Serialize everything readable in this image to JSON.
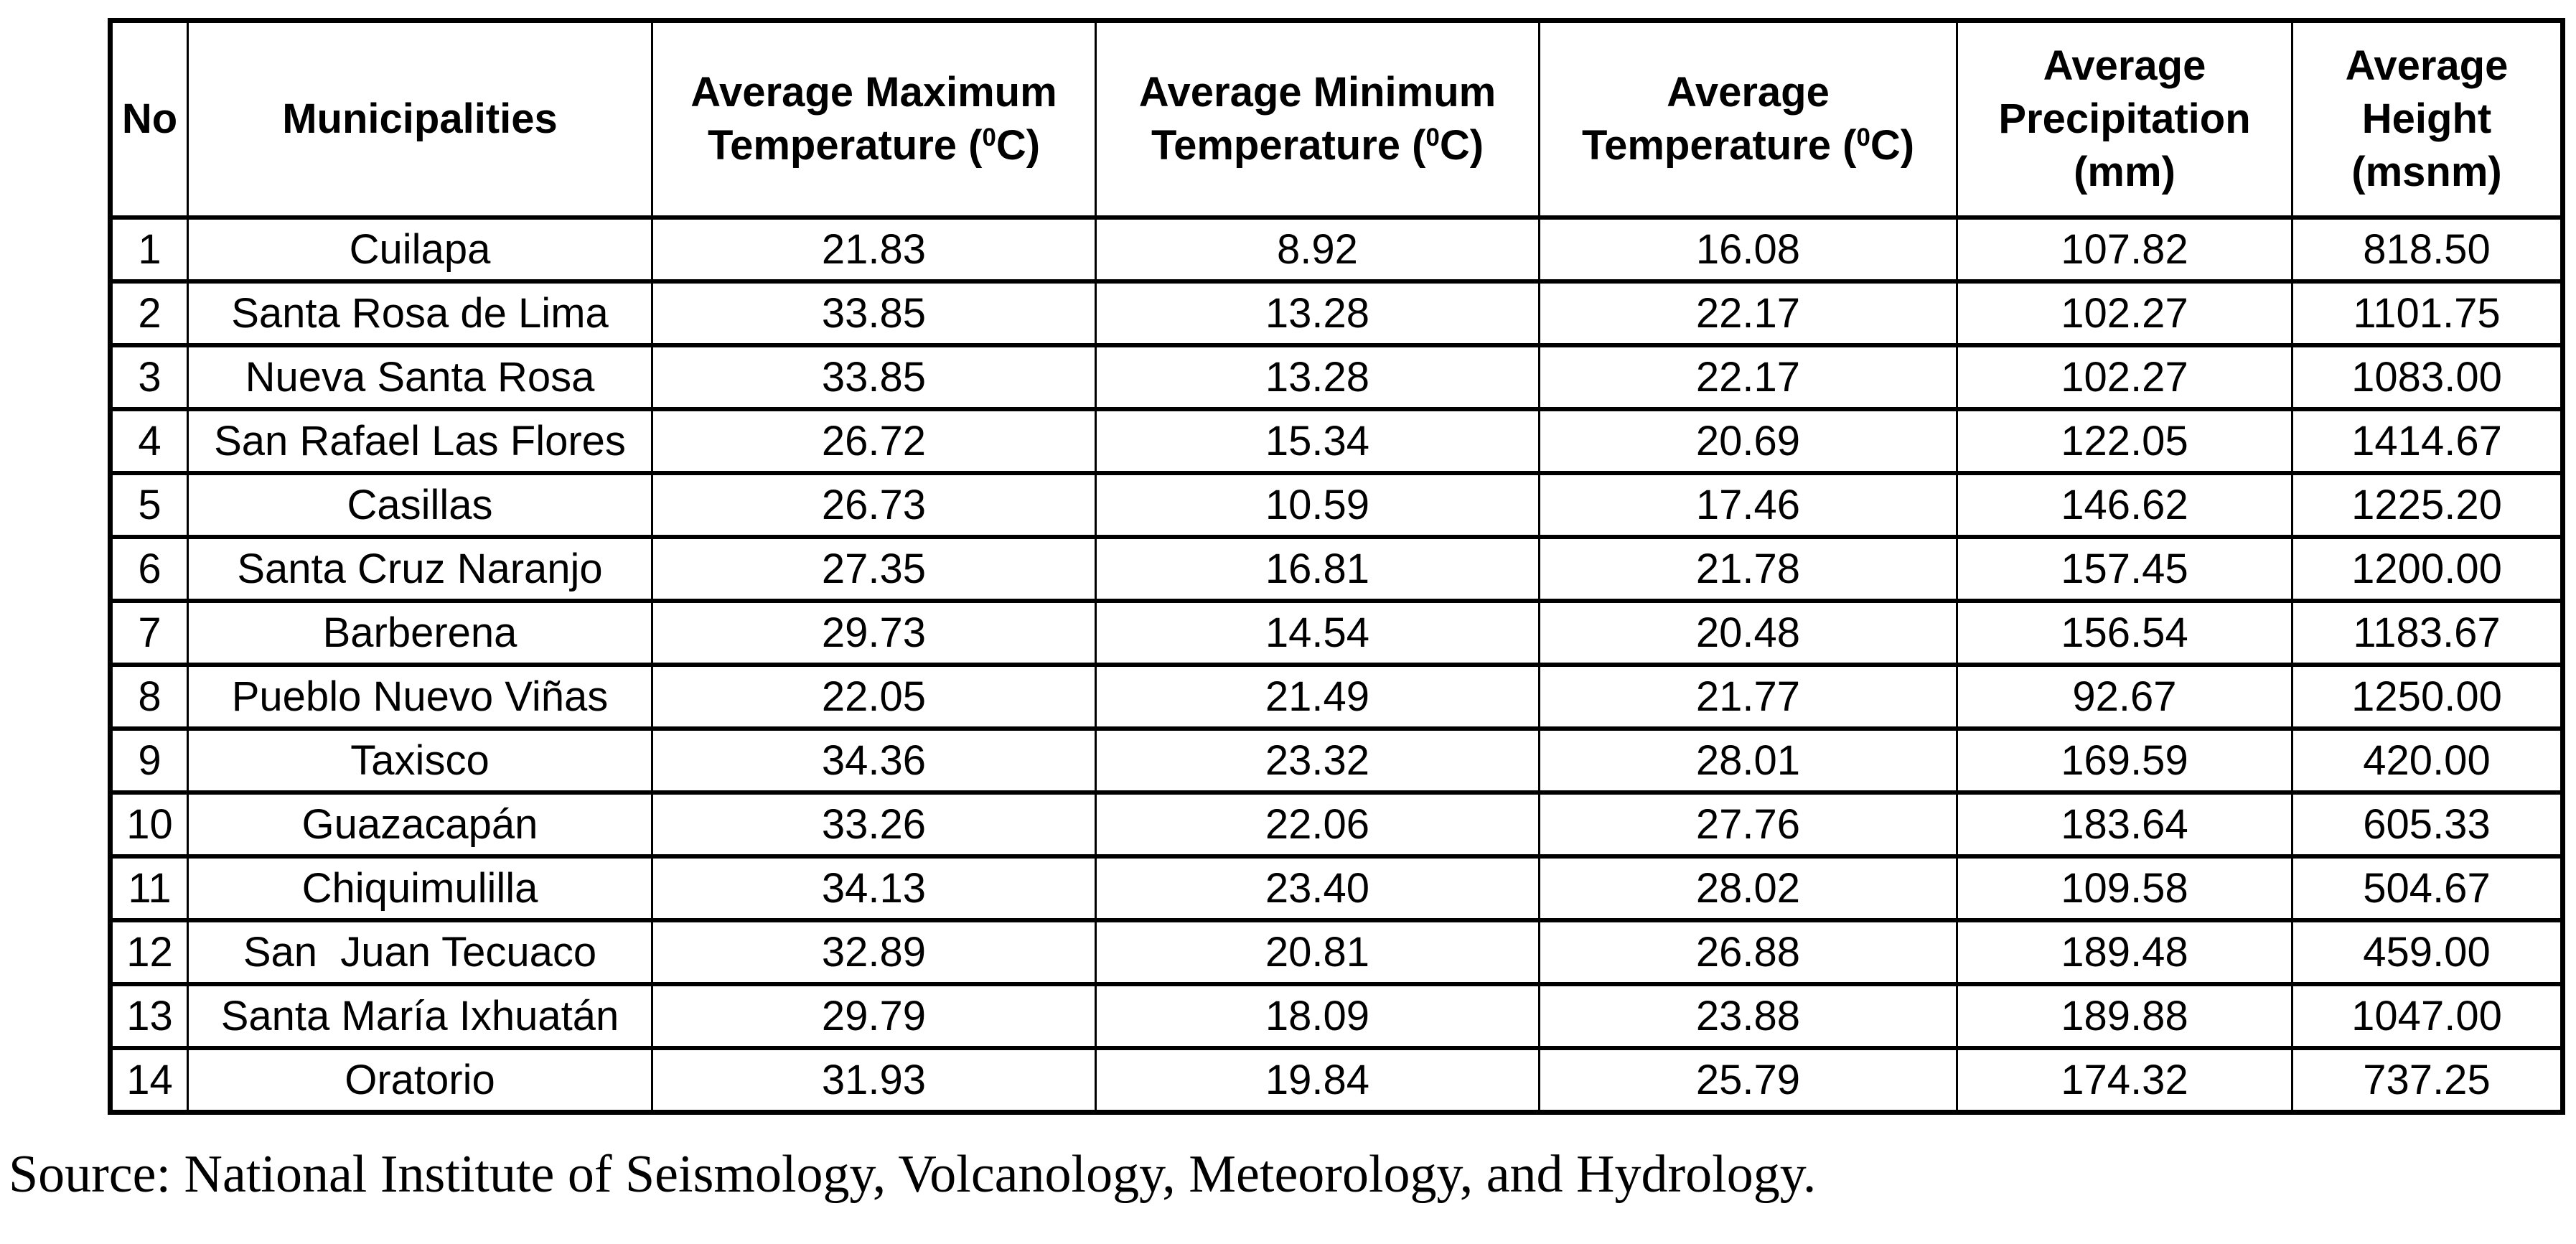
{
  "table": {
    "columns": [
      {
        "label": "No"
      },
      {
        "label": "Municipalities"
      },
      {
        "pre": "Average Maximum Temperature (",
        "sup": "0",
        "post": "C)"
      },
      {
        "pre": "Average Minimum Temperature (",
        "sup": "0",
        "post": "C)"
      },
      {
        "pre": "Average Temperature (",
        "sup": "0",
        "post": "C)"
      },
      {
        "label": "Average Precipitation (mm)"
      },
      {
        "label": "Average Height (msnm)"
      }
    ],
    "rows": [
      [
        "1",
        "Cuilapa",
        "21.83",
        "8.92",
        "16.08",
        "107.82",
        "818.50"
      ],
      [
        "2",
        "Santa Rosa de Lima",
        "33.85",
        "13.28",
        "22.17",
        "102.27",
        "1101.75"
      ],
      [
        "3",
        "Nueva Santa Rosa",
        "33.85",
        "13.28",
        "22.17",
        "102.27",
        "1083.00"
      ],
      [
        "4",
        "San Rafael Las Flores",
        "26.72",
        "15.34",
        "20.69",
        "122.05",
        "1414.67"
      ],
      [
        "5",
        "Casillas",
        "26.73",
        "10.59",
        "17.46",
        "146.62",
        "1225.20"
      ],
      [
        "6",
        "Santa Cruz Naranjo",
        "27.35",
        "16.81",
        "21.78",
        "157.45",
        "1200.00"
      ],
      [
        "7",
        "Barberena",
        "29.73",
        "14.54",
        "20.48",
        "156.54",
        "1183.67"
      ],
      [
        "8",
        "Pueblo Nuevo Viñas",
        "22.05",
        "21.49",
        "21.77",
        "92.67",
        "1250.00"
      ],
      [
        "9",
        "Taxisco",
        "34.36",
        "23.32",
        "28.01",
        "169.59",
        "420.00"
      ],
      [
        "10",
        "Guazacapán",
        "33.26",
        "22.06",
        "27.76",
        "183.64",
        "605.33"
      ],
      [
        "11",
        "Chiquimulilla",
        "34.13",
        "23.40",
        "28.02",
        "109.58",
        "504.67"
      ],
      [
        "12",
        "San  Juan Tecuaco",
        "32.89",
        "20.81",
        "26.88",
        "189.48",
        "459.00"
      ],
      [
        "13",
        "Santa María Ixhuatán",
        "29.79",
        "18.09",
        "23.88",
        "189.88",
        "1047.00"
      ],
      [
        "14",
        "Oratorio",
        "31.93",
        "19.84",
        "25.79",
        "174.32",
        "737.25"
      ]
    ]
  },
  "source_note": "Source: National Institute of Seismology, Volcanology, Meteorology, and Hydrology.",
  "colors": {
    "border": "#000000",
    "text": "#000000",
    "background": "#ffffff"
  }
}
